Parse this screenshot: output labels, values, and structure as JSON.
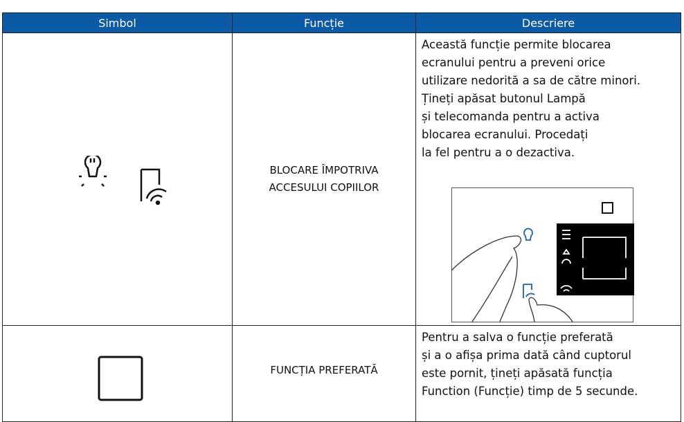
{
  "table": {
    "header": [
      "Simbol",
      "Funcție",
      "Descriere"
    ],
    "rows": [
      {
        "function": [
          "BLOCARE ÎMPOTRIVA",
          "ACCESULUI COPIILOR"
        ],
        "description": [
          "Această funcție permite blocarea",
          "ecranului pentru a preveni orice",
          "utilizare nedorită a sa de către minori.",
          "Țineți apăsat butonul Lampă",
          "și telecomanda pentru a activa",
          "blocarea ecranului. Procedați",
          "la fel pentru a o dezactiva."
        ]
      },
      {
        "function": [
          "FUNCȚIA PREFERATĂ"
        ],
        "description": [
          "Pentru a salva o funcție preferată",
          "și a o afișa prima dată când cuptorul",
          "este pornit, țineți apăsată funcția",
          "Function (Funcție) timp de 5 secunde."
        ]
      }
    ]
  }
}
